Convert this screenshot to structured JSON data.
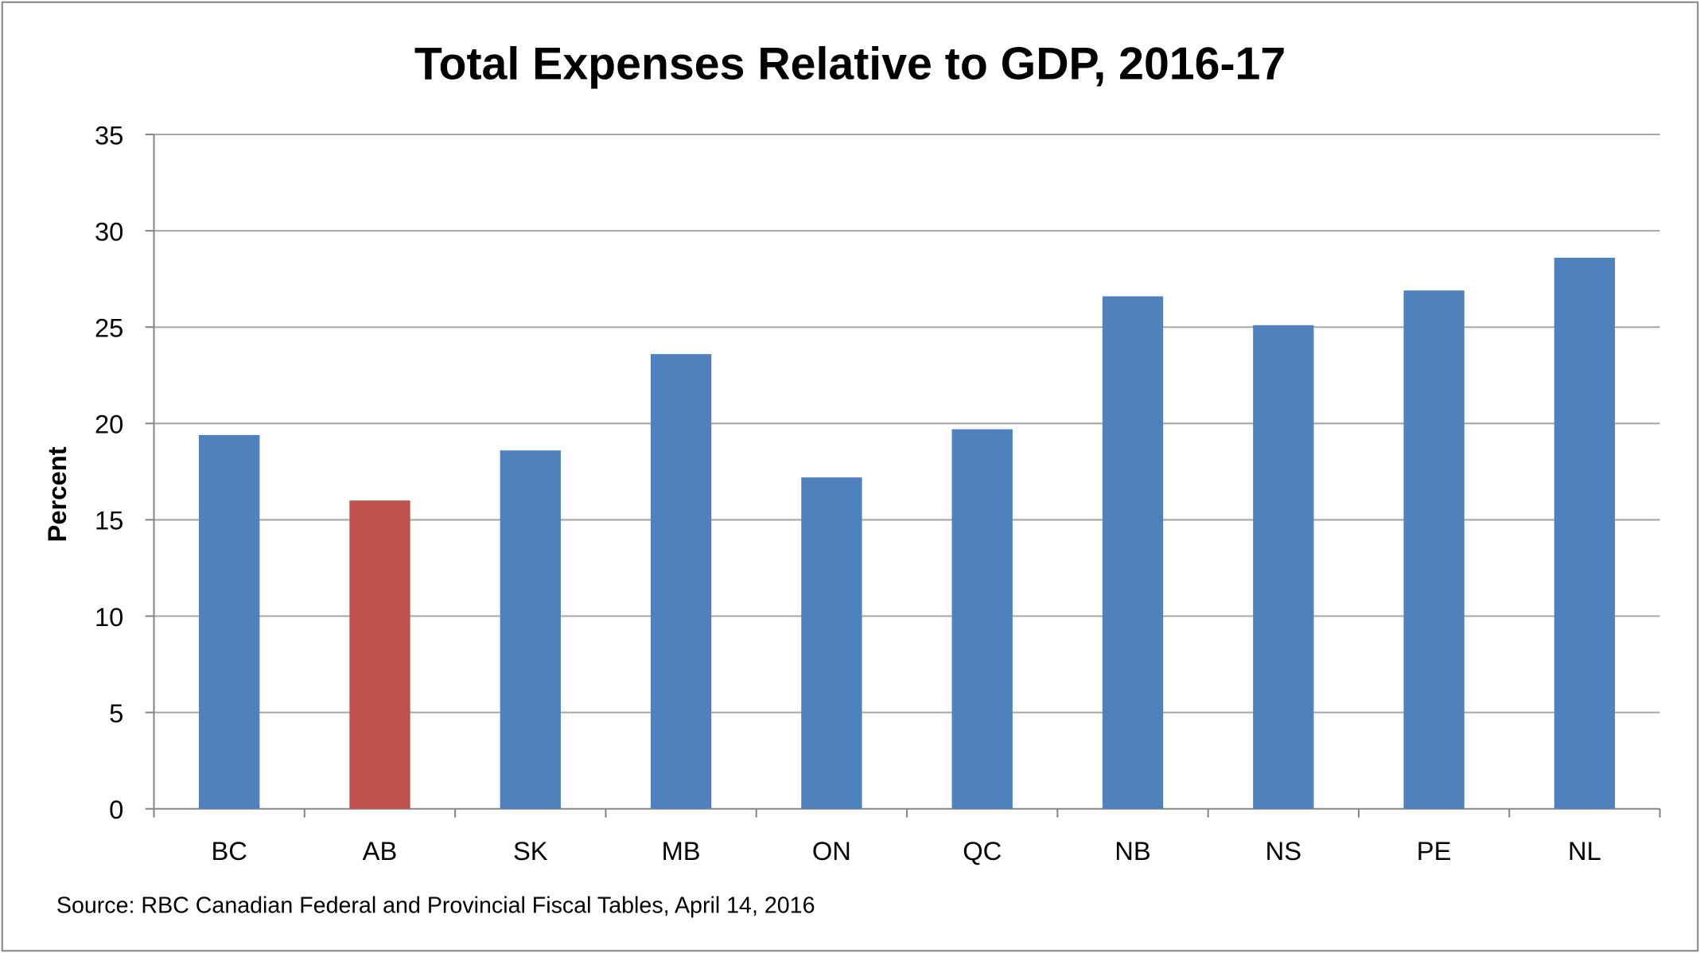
{
  "chart_data": {
    "type": "bar",
    "title": "Total Expenses Relative to GDP, 2016-17",
    "xlabel": "",
    "ylabel": "Percent",
    "ylim": [
      0,
      35
    ],
    "yticks": [
      0,
      5,
      10,
      15,
      20,
      25,
      30,
      35
    ],
    "grid": true,
    "legend": "none",
    "categories": [
      "BC",
      "AB",
      "SK",
      "MB",
      "ON",
      "QC",
      "NB",
      "NS",
      "PE",
      "NL"
    ],
    "values": [
      19.4,
      16.0,
      18.6,
      23.6,
      17.2,
      19.7,
      26.6,
      25.1,
      26.9,
      28.6
    ],
    "highlight_category": "AB",
    "colors": {
      "default": "#4F81BD",
      "highlight": "#C0504D",
      "grid": "#A6A6A6",
      "axis": "#868686"
    },
    "source": "Source: RBC Canadian Federal and Provincial Fiscal Tables, April 14, 2016"
  }
}
